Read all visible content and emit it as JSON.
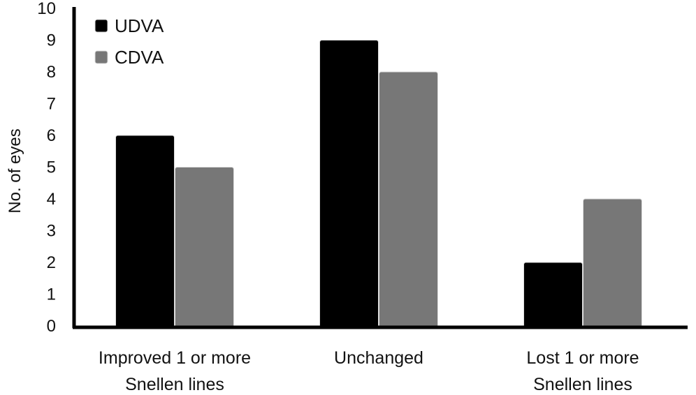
{
  "chart_data": {
    "type": "bar",
    "categories": [
      [
        "Improved 1 or more",
        "Snellen lines"
      ],
      [
        "Unchanged"
      ],
      [
        "Lost 1 or more",
        "Snellen lines"
      ]
    ],
    "series": [
      {
        "name": "UDVA",
        "values": [
          6,
          9,
          2
        ],
        "color": "#000000"
      },
      {
        "name": "CDVA",
        "values": [
          5,
          8,
          4
        ],
        "color": "#777777"
      }
    ],
    "title": "",
    "xlabel": "",
    "ylabel": "No. of eyes",
    "ylim": [
      0,
      10
    ],
    "yticks": [
      0,
      1,
      2,
      3,
      4,
      5,
      6,
      7,
      8,
      9,
      10
    ],
    "grid": false,
    "legend_position": "top-left"
  }
}
